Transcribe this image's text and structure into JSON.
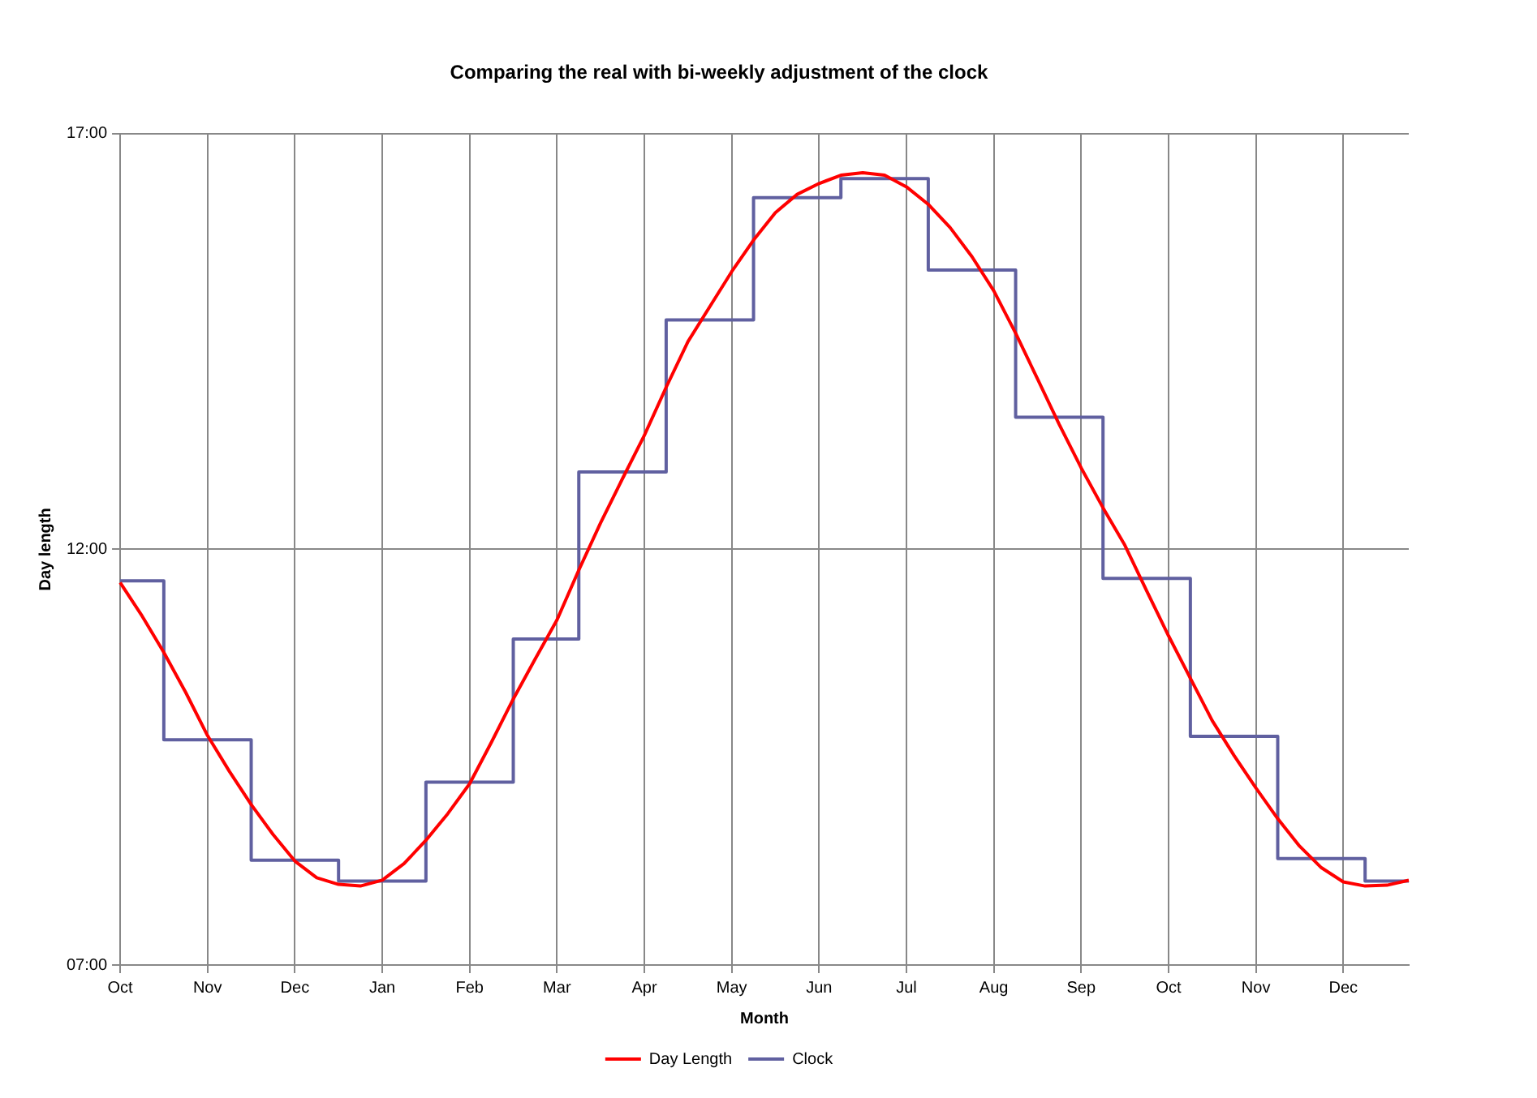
{
  "chart_data": {
    "type": "line",
    "title": "Comparing the real with bi-weekly adjustment of the clock",
    "xlabel": "Month",
    "ylabel": "Day length",
    "categories": [
      "Oct",
      null,
      null,
      null,
      "Nov",
      null,
      null,
      null,
      "Dec",
      null,
      null,
      null,
      "Jan",
      null,
      null,
      null,
      "Feb",
      null,
      null,
      null,
      "Mar",
      null,
      null,
      null,
      "Apr",
      null,
      null,
      null,
      "May",
      null,
      null,
      null,
      "Jun",
      null,
      null,
      null,
      "Jul",
      null,
      null,
      null,
      "Aug",
      null,
      null,
      null,
      "Sep",
      null,
      null,
      null,
      "Oct",
      null,
      null,
      null,
      "Nov",
      null,
      null,
      null,
      "Dec",
      null,
      null,
      null
    ],
    "ylim": [
      7,
      17
    ],
    "yticks": [
      {
        "value": 7,
        "label": "07:00"
      },
      {
        "value": 12,
        "label": "12:00"
      },
      {
        "value": 17,
        "label": "17:00"
      }
    ],
    "grid": true,
    "legend": "bottom",
    "marker": "none",
    "series": [
      {
        "name": "Day Length",
        "type": "line",
        "color": "#ff0000",
        "values": [
          11.6,
          11.2,
          10.76,
          10.28,
          9.76,
          9.33,
          8.93,
          8.57,
          8.25,
          8.05,
          7.97,
          7.95,
          8.02,
          8.22,
          8.5,
          8.82,
          9.18,
          9.68,
          10.2,
          10.68,
          11.15,
          11.75,
          12.32,
          12.85,
          13.37,
          13.95,
          14.5,
          14.92,
          15.34,
          15.72,
          16.05,
          16.27,
          16.4,
          16.5,
          16.53,
          16.5,
          16.36,
          16.15,
          15.87,
          15.52,
          15.11,
          14.6,
          14.05,
          13.5,
          12.98,
          12.5,
          12.05,
          11.5,
          10.96,
          10.45,
          9.94,
          9.52,
          9.13,
          8.76,
          8.43,
          8.17,
          8.0,
          7.95,
          7.96,
          8.02
        ]
      },
      {
        "name": "Clock",
        "type": "step",
        "color": "#6060a0",
        "values": [
          11.62,
          11.62,
          9.71,
          9.71,
          9.71,
          9.71,
          8.26,
          8.26,
          8.26,
          8.26,
          8.01,
          8.01,
          8.01,
          8.01,
          9.2,
          9.2,
          9.2,
          9.2,
          10.92,
          10.92,
          10.92,
          12.93,
          12.93,
          12.93,
          12.93,
          14.76,
          14.76,
          14.76,
          14.76,
          16.23,
          16.23,
          16.23,
          16.23,
          16.46,
          16.46,
          16.46,
          16.46,
          15.36,
          15.36,
          15.36,
          15.36,
          13.59,
          13.59,
          13.59,
          13.59,
          11.65,
          11.65,
          11.65,
          11.65,
          9.75,
          9.75,
          9.75,
          9.75,
          8.28,
          8.28,
          8.28,
          8.28,
          8.01,
          8.01,
          8.01
        ]
      }
    ]
  }
}
